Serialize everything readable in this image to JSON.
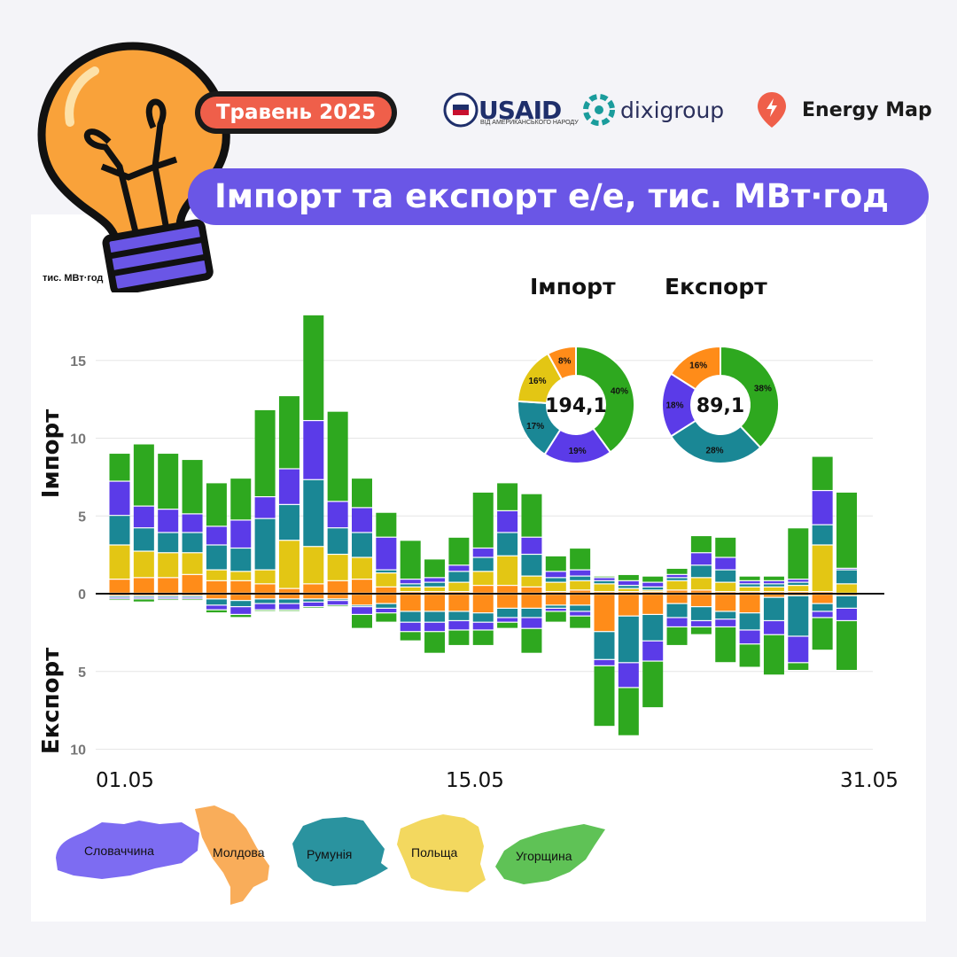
{
  "header": {
    "date_badge": "Травень 2025",
    "title": "Імпорт та експорт е/е, тис. МВт·год"
  },
  "logos": {
    "usaid": "USAID",
    "usaid_sub": "ВІД АМЕРИКАНСЬКОГО НАРОДУ",
    "dixi": "dixigroup",
    "energy_map": "Energy Map"
  },
  "colors": {
    "slovakia": "#5b3be8",
    "moldova": "#ff8c19",
    "romania": "#1a8795",
    "poland": "#e3c614",
    "hungary": "#2ea81f",
    "accent": "#6a56e6",
    "badge": "#ef5f4a"
  },
  "legend": [
    {
      "label": "Словаччина",
      "color": "#7d6cf2",
      "icon": "slovakia-map-icon"
    },
    {
      "label": "Молдова",
      "color": "#f9ad5a",
      "icon": "moldova-map-icon"
    },
    {
      "label": "Румунія",
      "color": "#2a939f",
      "icon": "romania-map-icon"
    },
    {
      "label": "Польща",
      "color": "#f3d85f",
      "icon": "poland-map-icon"
    },
    {
      "label": "Угорщина",
      "color": "#5fc256",
      "icon": "hungary-map-icon"
    }
  ],
  "donuts": [
    {
      "title": "Імпорт",
      "total": "194,1",
      "slices": [
        {
          "country": "Угорщина",
          "value": 40,
          "label": "40%"
        },
        {
          "country": "Словаччина",
          "value": 19,
          "label": "19%"
        },
        {
          "country": "Румунія",
          "value": 17,
          "label": "17%"
        },
        {
          "country": "Польща",
          "value": 16,
          "label": "16%"
        },
        {
          "country": "Молдова",
          "value": 8,
          "label": "8%"
        }
      ]
    },
    {
      "title": "Експорт",
      "total": "89,1",
      "slices": [
        {
          "country": "Угорщина",
          "value": 38,
          "label": "38%"
        },
        {
          "country": "Румунія",
          "value": 28,
          "label": "28%"
        },
        {
          "country": "Словаччина",
          "value": 18,
          "label": "18%"
        },
        {
          "country": "Молдова",
          "value": 16,
          "label": "16%"
        }
      ]
    }
  ],
  "chart_data": {
    "type": "bar",
    "stacked": true,
    "unit_label": "тис. МВт·год",
    "ylabel_import": "Імпорт",
    "ylabel_export": "Експорт",
    "yticks_import": [
      15,
      10,
      5,
      0
    ],
    "yticks_export": [
      5,
      10
    ],
    "ylim": [
      -10,
      18
    ],
    "x_labels": [
      {
        "label": "01.05",
        "day": 1
      },
      {
        "label": "15.05",
        "day": 15
      },
      {
        "label": "31.05",
        "day": 31
      }
    ],
    "categories": [
      "01.05",
      "02.05",
      "03.05",
      "04.05",
      "05.05",
      "06.05",
      "07.05",
      "08.05",
      "09.05",
      "10.05",
      "11.05",
      "12.05",
      "13.05",
      "14.05",
      "15.05",
      "16.05",
      "17.05",
      "18.05",
      "19.05",
      "20.05",
      "21.05",
      "22.05",
      "23.05",
      "24.05",
      "25.05",
      "26.05",
      "27.05",
      "28.05",
      "29.05",
      "30.05",
      "31.05"
    ],
    "series_order": [
      "Молдова",
      "Польща",
      "Румунія",
      "Словаччина",
      "Угорщина"
    ],
    "import": {
      "Молдова": [
        0.9,
        1.0,
        1.0,
        1.2,
        0.8,
        0.8,
        0.6,
        0.3,
        0.6,
        0.8,
        0.9,
        0.4,
        0.1,
        0.1,
        0.1,
        0.5,
        0.5,
        0.4,
        0.1,
        0.2,
        0.1,
        0.1,
        0.1,
        0.2,
        0.2,
        0.1,
        0.1,
        0.1,
        0.1,
        0.1,
        0.0
      ],
      "Польща": [
        2.2,
        1.7,
        1.6,
        1.4,
        0.7,
        0.6,
        0.9,
        3.1,
        2.4,
        1.7,
        1.4,
        0.9,
        0.3,
        0.3,
        0.6,
        0.9,
        1.9,
        0.7,
        0.6,
        0.6,
        0.5,
        0.2,
        0.1,
        0.6,
        0.8,
        0.6,
        0.3,
        0.3,
        0.4,
        3.0,
        0.6
      ],
      "Румунія": [
        1.9,
        1.5,
        1.3,
        1.3,
        1.6,
        1.5,
        3.3,
        2.3,
        4.3,
        1.7,
        1.6,
        0.2,
        0.2,
        0.3,
        0.7,
        0.9,
        1.5,
        1.4,
        0.3,
        0.3,
        0.2,
        0.2,
        0.2,
        0.2,
        0.8,
        0.8,
        0.2,
        0.2,
        0.2,
        1.3,
        0.9
      ],
      "Словаччина": [
        2.2,
        1.4,
        1.5,
        1.2,
        1.2,
        1.8,
        1.4,
        2.3,
        3.8,
        1.7,
        1.6,
        2.1,
        0.3,
        0.3,
        0.4,
        0.6,
        1.4,
        1.1,
        0.4,
        0.4,
        0.2,
        0.3,
        0.3,
        0.2,
        0.8,
        0.8,
        0.2,
        0.2,
        0.2,
        2.2,
        0.1
      ],
      "Угорщина": [
        1.8,
        4.0,
        3.6,
        3.5,
        2.8,
        2.7,
        5.6,
        4.7,
        6.8,
        5.8,
        1.9,
        1.6,
        2.5,
        1.2,
        1.8,
        3.6,
        1.8,
        2.8,
        1.0,
        1.4,
        0.1,
        0.4,
        0.4,
        0.4,
        1.1,
        1.3,
        0.3,
        0.3,
        3.3,
        2.2,
        4.9
      ]
    },
    "export": {
      "Молдова": [
        0.1,
        0.1,
        0.1,
        0.1,
        0.3,
        0.4,
        0.3,
        0.3,
        0.3,
        0.3,
        0.7,
        0.6,
        1.1,
        1.1,
        1.1,
        1.2,
        0.9,
        0.9,
        0.7,
        0.7,
        2.4,
        1.4,
        1.3,
        0.6,
        0.8,
        1.1,
        1.2,
        0.2,
        0.1,
        0.6,
        0.1
      ],
      "Румунія": [
        0.1,
        0.1,
        0.1,
        0.1,
        0.4,
        0.4,
        0.3,
        0.3,
        0.2,
        0.1,
        0.1,
        0.3,
        0.7,
        0.7,
        0.6,
        0.6,
        0.6,
        0.6,
        0.2,
        0.4,
        1.8,
        3.0,
        1.7,
        0.9,
        0.9,
        0.5,
        1.1,
        1.5,
        2.6,
        0.5,
        0.8
      ],
      "Словаччина": [
        0.1,
        0.1,
        0.1,
        0.1,
        0.3,
        0.5,
        0.4,
        0.4,
        0.3,
        0.3,
        0.5,
        0.3,
        0.6,
        0.6,
        0.6,
        0.5,
        0.3,
        0.7,
        0.2,
        0.3,
        0.4,
        1.6,
        1.3,
        0.6,
        0.4,
        0.5,
        0.9,
        0.9,
        1.7,
        0.4,
        0.8
      ],
      "Угорщина": [
        0.1,
        0.2,
        0.1,
        0.1,
        0.2,
        0.2,
        0.1,
        0.1,
        0.1,
        0.1,
        0.9,
        0.6,
        0.6,
        1.4,
        1.0,
        1.0,
        0.4,
        1.6,
        0.7,
        0.8,
        3.9,
        3.1,
        3.0,
        1.2,
        0.5,
        2.3,
        1.5,
        2.6,
        0.5,
        2.1,
        3.2
      ]
    }
  }
}
